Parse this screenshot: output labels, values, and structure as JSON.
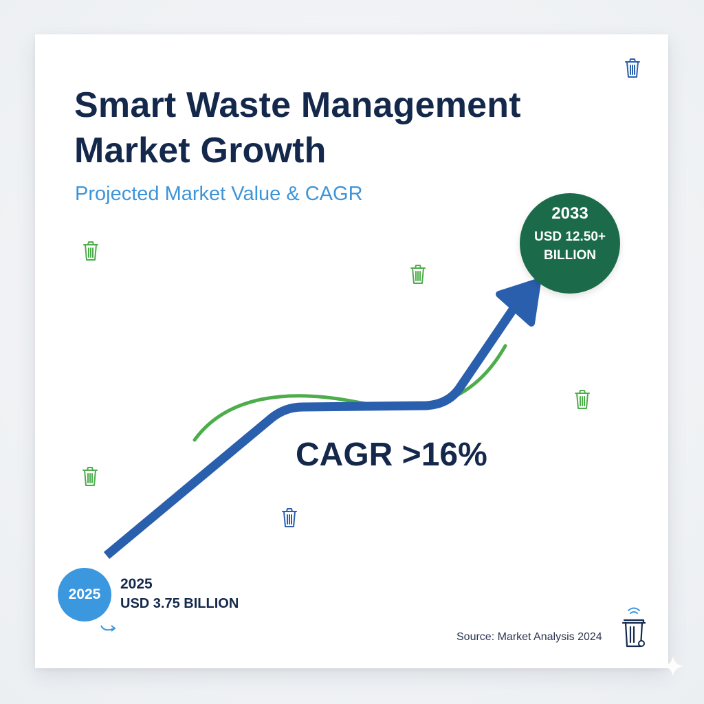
{
  "title_line1": "Smart Waste Management",
  "title_line2": "Market Growth",
  "subtitle": "Projected Market Value & CAGR",
  "colors": {
    "navy": "#14284b",
    "primary_blue": "#2a5fad",
    "accent_blue": "#3b97de",
    "accent_green": "#4cad4a",
    "dark_green": "#1b6b4a"
  },
  "chart_data": {
    "type": "line",
    "title": "Smart Waste Management Market Growth",
    "subtitle": "Projected Market Value & CAGR",
    "x": [
      2025,
      2033
    ],
    "series": [
      {
        "values": [
          3.75,
          12.5
        ]
      }
    ],
    "start": {
      "year": "2025",
      "value_label": "USD 3.75 BILLION"
    },
    "end": {
      "year": "2033",
      "value_label": "USD 12.50+ BILLION"
    },
    "annotation": "CAGR >16%",
    "grid": false,
    "legend": "none"
  },
  "source": "Source: Market Analysis 2024",
  "icons": {
    "decorative": "trash-bin-icon",
    "smart_bin": "smart-bin-wifi-icon",
    "arrow": "curved-arrow-icon",
    "sparkle": "sparkle-icon"
  }
}
